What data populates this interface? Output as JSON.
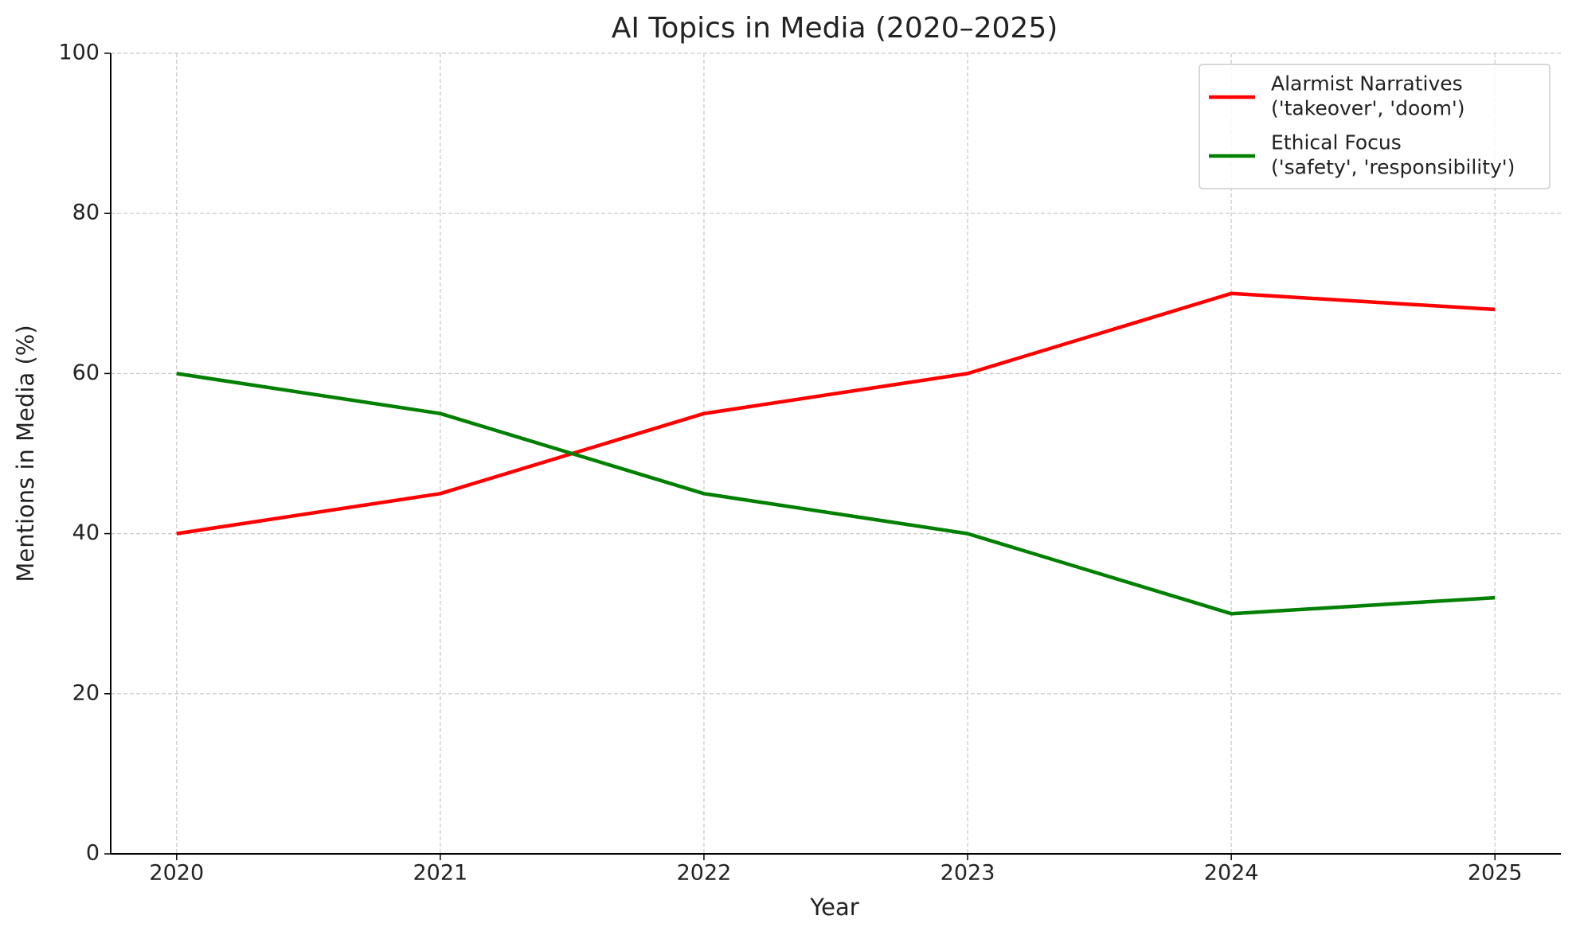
{
  "chart_data": {
    "type": "line",
    "title": "AI Topics in Media (2020–2025)",
    "x_label": "Year",
    "y_label": "Mentions in Media (%)",
    "x": [
      2020,
      2021,
      2022,
      2023,
      2024,
      2025
    ],
    "series": [
      {
        "name": "Alarmist Narratives\n('takeover', 'doom')",
        "color": "#ff0000",
        "values": [
          40,
          45,
          55,
          60,
          70,
          68
        ]
      },
      {
        "name": "Ethical Focus\n('safety', 'responsibility')",
        "color": "#008000",
        "values": [
          60,
          55,
          45,
          40,
          30,
          32
        ]
      }
    ],
    "xlim": [
      2019.75,
      2025.25
    ],
    "xticks": [
      2020,
      2021,
      2022,
      2023,
      2024,
      2025
    ],
    "ylim": [
      0,
      100
    ],
    "yticks": [
      0,
      20,
      40,
      60,
      80,
      100
    ],
    "grid": true,
    "legend": "upper right"
  }
}
